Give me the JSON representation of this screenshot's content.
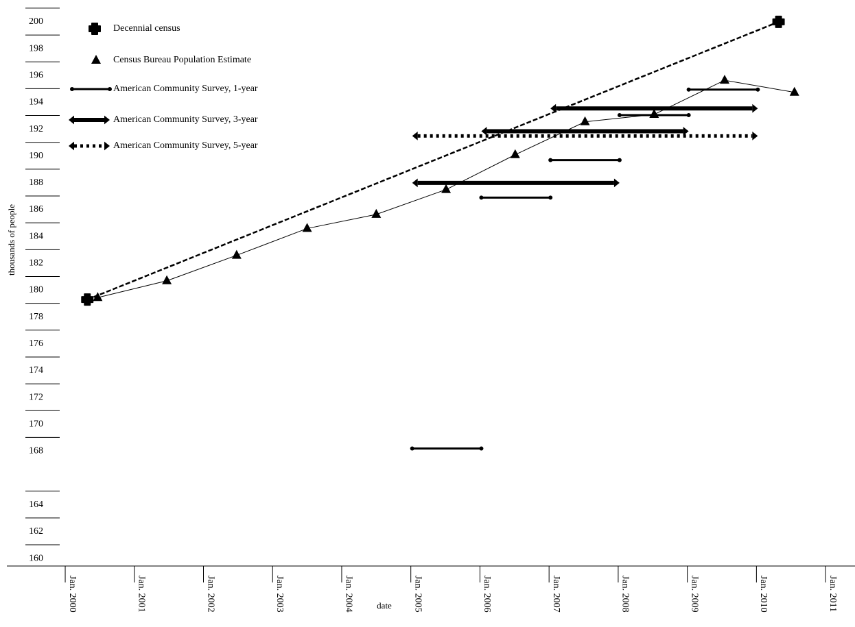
{
  "chart_data": {
    "type": "line",
    "x_label": "date",
    "y_label": "thousands of people",
    "xlim": [
      1999.136,
      2011.406
    ],
    "ylim": [
      159.44,
      201.12
    ],
    "xticks": [
      {
        "value": 2000,
        "label": "Jan. 2000"
      },
      {
        "value": 2001,
        "label": "Jan. 2001"
      },
      {
        "value": 2002,
        "label": "Jan. 2002"
      },
      {
        "value": 2003,
        "label": "Jan. 2003"
      },
      {
        "value": 2004,
        "label": "Jan. 2004"
      },
      {
        "value": 2005,
        "label": "Jan. 2005"
      },
      {
        "value": 2006,
        "label": "Jan. 2006"
      },
      {
        "value": 2007,
        "label": "Jan. 2007"
      },
      {
        "value": 2008,
        "label": "Jan. 2008"
      },
      {
        "value": 2009,
        "label": "Jan. 2009"
      },
      {
        "value": 2010,
        "label": "Jan. 2010"
      },
      {
        "value": 2011,
        "label": "Jan. 2011"
      }
    ],
    "yticks": [
      160,
      162,
      164,
      168,
      170,
      172,
      174,
      176,
      178,
      180,
      182,
      184,
      186,
      188,
      190,
      192,
      194,
      196,
      198,
      200
    ],
    "legend": "upper left",
    "series": [
      {
        "name": "Decennial census",
        "style": "cross",
        "color": "#000000",
        "x": [
          2000.3,
          2010.3
        ],
        "values": [
          179.3,
          200.0
        ]
      },
      {
        "name": "Census Bureau Population Estimate",
        "style": "triangle",
        "color": "#000000",
        "x": [
          2000.45,
          2001.45,
          2002.46,
          2003.48,
          2004.48,
          2005.49,
          2006.49,
          2007.5,
          2008.5,
          2009.52,
          2010.53
        ],
        "values": [
          179.45,
          180.7,
          182.6,
          184.6,
          185.65,
          187.5,
          190.1,
          192.55,
          193.1,
          195.65,
          194.75
        ]
      },
      {
        "name": "American Community Survey, 1-year",
        "style": "range-thin",
        "color": "#000000",
        "x_start": [
          2005,
          2006,
          2007,
          2008,
          2009
        ],
        "x_end": [
          2006,
          2007,
          2008,
          2009,
          2010
        ],
        "values": [
          168.2,
          186.9,
          189.7,
          193.05,
          194.95
        ]
      },
      {
        "name": "American Community Survey, 3-year",
        "style": "range-thick",
        "color": "#000000",
        "x_start": [
          2005,
          2006,
          2007
        ],
        "x_end": [
          2008,
          2009,
          2010
        ],
        "values": [
          188.0,
          191.85,
          193.55
        ]
      },
      {
        "name": "American Community Survey, 5-year",
        "style": "range-dotted",
        "color": "#000000",
        "x_start": [
          2005
        ],
        "x_end": [
          2010
        ],
        "values": [
          191.5
        ]
      }
    ]
  }
}
